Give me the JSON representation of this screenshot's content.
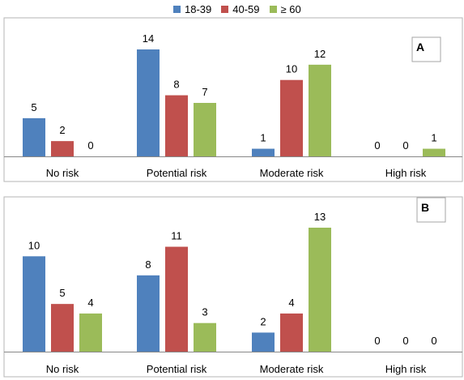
{
  "legend": {
    "entries": [
      {
        "label": "18-39",
        "color": "#4f81bd"
      },
      {
        "label": "40-59",
        "color": "#c0504d"
      },
      {
        "label": "≥ 60",
        "color": "#9bbb59"
      }
    ]
  },
  "chart_data": [
    {
      "type": "bar",
      "panel_label": "A",
      "categories": [
        "No risk",
        "Potential risk",
        "Moderate risk",
        "High risk"
      ],
      "series": [
        {
          "name": "18-39",
          "color": "#4f81bd",
          "values": [
            5,
            14,
            1,
            0
          ]
        },
        {
          "name": "40-59",
          "color": "#c0504d",
          "values": [
            2,
            8,
            10,
            0
          ]
        },
        {
          "name": "≥ 60",
          "color": "#9bbb59",
          "values": [
            0,
            7,
            12,
            1
          ]
        }
      ],
      "ylim": [
        0,
        14
      ],
      "data_labels": true,
      "grid": false,
      "legend_position": "top-center"
    },
    {
      "type": "bar",
      "panel_label": "B",
      "categories": [
        "No risk",
        "Potential risk",
        "Moderate risk",
        "High risk"
      ],
      "series": [
        {
          "name": "18-39",
          "color": "#4f81bd",
          "values": [
            10,
            8,
            2,
            0
          ]
        },
        {
          "name": "40-59",
          "color": "#c0504d",
          "values": [
            5,
            11,
            4,
            0
          ]
        },
        {
          "name": "≥ 60",
          "color": "#9bbb59",
          "values": [
            4,
            3,
            13,
            0
          ]
        }
      ],
      "ylim": [
        0,
        13
      ],
      "data_labels": true,
      "grid": false,
      "legend_position": "top-center"
    }
  ]
}
